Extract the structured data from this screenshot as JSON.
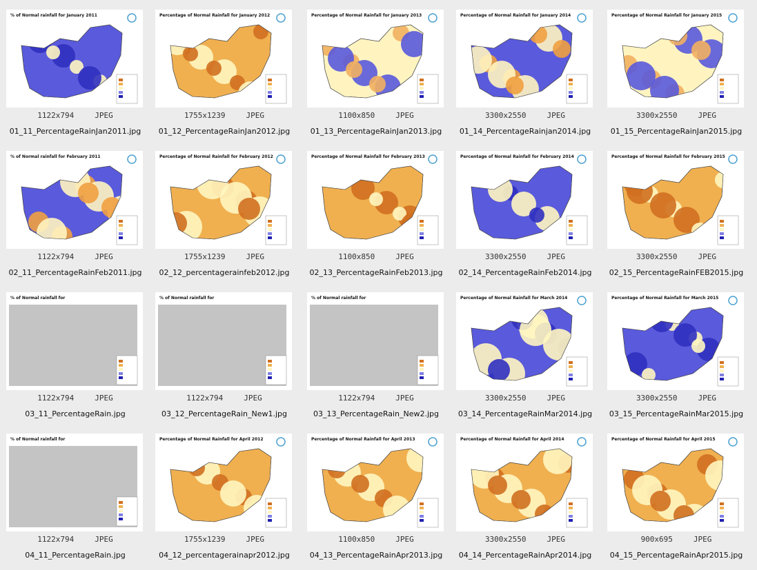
{
  "items": [
    {
      "thumb_title": "% of Normal rainfall for January 2011",
      "dimensions": "1122x794",
      "format": "JPEG",
      "filename": "01_11_PercentageRainJan2011.jpg"
    },
    {
      "thumb_title": "Percentage of Normal Rainfall for January 2012",
      "dimensions": "1755x1239",
      "format": "JPEG",
      "filename": "01_12_PercentageRainJan2012.jpg"
    },
    {
      "thumb_title": "Percentage of Normal Rainfall for January 2013",
      "dimensions": "1100x850",
      "format": "JPEG",
      "filename": "01_13_PercentageRainJan2013.jpg"
    },
    {
      "thumb_title": "Percentage of Normal Rainfall for January 2014",
      "dimensions": "3300x2550",
      "format": "JPEG",
      "filename": "01_14_PercentageRainjan2014.jpg"
    },
    {
      "thumb_title": "Percentage of Normal Rainfall for January 2015",
      "dimensions": "3300x2550",
      "format": "JPEG",
      "filename": "01_15_PercentageRainJan2015.jpg"
    },
    {
      "thumb_title": "% of Normal rainfall for February 2011",
      "dimensions": "1122x794",
      "format": "JPEG",
      "filename": "02_11_PercentageRainFeb2011.jpg"
    },
    {
      "thumb_title": "Percentage of Normal Rainfall for February 2012",
      "dimensions": "1755x1239",
      "format": "JPEG",
      "filename": "02_12_percentagerainfeb2012.jpg"
    },
    {
      "thumb_title": "Percentage of Normal Rainfall for February 2013",
      "dimensions": "1100x850",
      "format": "JPEG",
      "filename": "02_13_PercentageRainFeb2013.jpg"
    },
    {
      "thumb_title": "Percentage of Normal Rainfall for February 2014",
      "dimensions": "3300x2550",
      "format": "JPEG",
      "filename": "02_14_PercentageRainFeb2014.jpg"
    },
    {
      "thumb_title": "Percentage of Normal Rainfall for February 2015",
      "dimensions": "3300x2550",
      "format": "JPEG",
      "filename": "02_15_PercentageRainFEB2015.jpg"
    },
    {
      "thumb_title": "% of Normal rainfall for",
      "dimensions": "1122x794",
      "format": "JPEG",
      "filename": "03_11_PercentageRain.jpg"
    },
    {
      "thumb_title": "% of Normal rainfall for",
      "dimensions": "1122x794",
      "format": "JPEG",
      "filename": "03_12_PercentageRain_New1.jpg"
    },
    {
      "thumb_title": "% of Normal rainfall for",
      "dimensions": "1122x794",
      "format": "JPEG",
      "filename": "03_13_PercentageRain_New2.jpg"
    },
    {
      "thumb_title": "Percentage of Normal Rainfall for March 2014",
      "dimensions": "3300x2550",
      "format": "JPEG",
      "filename": "03_14_PercentageRainMar2014.jpg"
    },
    {
      "thumb_title": "Percentage of Normal Rainfall for March 2015",
      "dimensions": "3300x2550",
      "format": "JPEG",
      "filename": "03_15_PercentageRainMar2015.jpg"
    },
    {
      "thumb_title": "% of Normal rainfall for",
      "dimensions": "1122x794",
      "format": "JPEG",
      "filename": "04_11_PercentageRain.jpg"
    },
    {
      "thumb_title": "Percentage of Normal Rainfall for April 2012",
      "dimensions": "1755x1239",
      "format": "JPEG",
      "filename": "04_12_percentagerainapr2012.jpg"
    },
    {
      "thumb_title": "Percentage of Normal Rainfall for April 2013",
      "dimensions": "1100x850",
      "format": "JPEG",
      "filename": "04_13_PercentageRainApr2013.jpg"
    },
    {
      "thumb_title": "Percentage of Normal Rainfall for April 2014",
      "dimensions": "3300x2550",
      "format": "JPEG",
      "filename": "04_14_PercentageRainApr2014.jpg"
    },
    {
      "thumb_title": "Percentage of Normal Rainfall for April 2015",
      "dimensions": "900x695",
      "format": "JPEG",
      "filename": "04_15_PercentageRainApr2015.jpg"
    }
  ]
}
